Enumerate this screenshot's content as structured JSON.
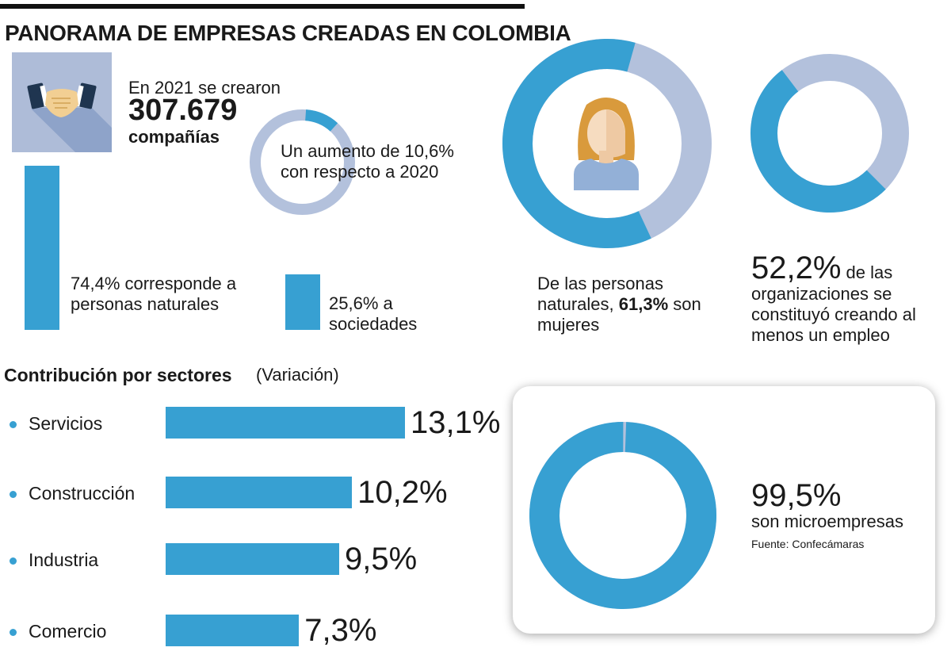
{
  "title": "PANORAMA DE EMPRESAS CREADAS EN COLOMBIA",
  "created": {
    "line1": "En 2021 se crearon",
    "number": "307.679",
    "line2": "compañías"
  },
  "split": {
    "naturales_text": "74,4% corresponde a personas naturales",
    "naturales_value": 74.4,
    "sociedades_text": "25,6% a sociedades",
    "sociedades_value": 25.6
  },
  "increase": {
    "text": "Un aumento de 10,6% con respecto a 2020",
    "value": 10.6
  },
  "women": {
    "text_before": "De las personas naturales,",
    "pct": "61,3%",
    "text_after": "son mujeres",
    "value": 61.3
  },
  "employment": {
    "pct": "52,2%",
    "text": "de las organizaciones se constituyó creando al menos un empleo",
    "value": 52.2
  },
  "chart_data": {
    "type": "bar",
    "title": "Contribución por sectores",
    "subtitle": "(Variación)",
    "categories": [
      "Servicios",
      "Construcción",
      "Industria",
      "Comercio"
    ],
    "values": [
      13.1,
      10.2,
      9.5,
      7.3
    ],
    "value_labels": [
      "13,1%",
      "10,2%",
      "9,5%",
      "7,3%"
    ],
    "xlabel": "",
    "ylabel": ""
  },
  "micro": {
    "pct": "99,5%",
    "label": "son microempresas",
    "value": 99.5,
    "source": "Fuente: Confecámaras"
  },
  "colors": {
    "accent": "#37a0d2",
    "light": "#b3c1dc",
    "text": "#1a1a1a"
  }
}
